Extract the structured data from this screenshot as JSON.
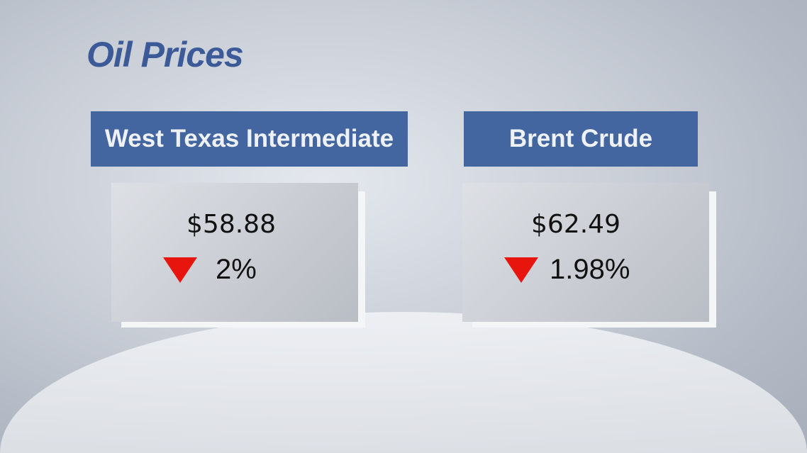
{
  "title": "Oil Prices",
  "cards": [
    {
      "name": "West Texas Intermediate",
      "price": "$58.88",
      "change": "2%",
      "direction": "down"
    },
    {
      "name": "Brent Crude",
      "price": "$62.49",
      "change": "1.98%",
      "direction": "down"
    }
  ],
  "colors": {
    "header": "#4466a0",
    "title": "#3d5a98",
    "down_arrow": "#e8150f"
  }
}
